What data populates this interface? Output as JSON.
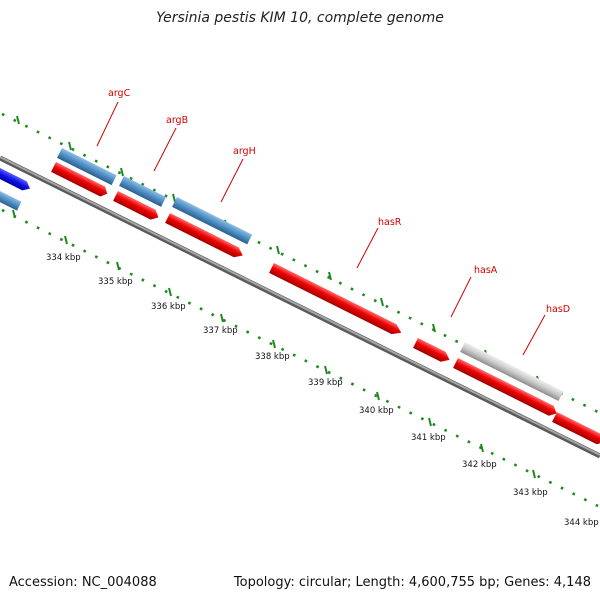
{
  "title": "Yersinia pestis KIM 10, complete genome",
  "footer": {
    "accession": "Accession: NC_004088",
    "topology": "Topology: circular; Length: 4,600,755 bp; Genes: 4,148"
  },
  "colors": {
    "backbone": "#8c8c8c",
    "forward_gene": "#ee0000",
    "blue_gene": "#4d8fc4",
    "dark_blue_gene": "#1010e8",
    "gray_gene": "#c8c8c8",
    "tick": "#1f8a1f",
    "label": "#d40000"
  },
  "scale": {
    "ticks": [
      "334 kbp",
      "335 kbp",
      "336 kbp",
      "337 kbp",
      "338 kbp",
      "339 kbp",
      "340 kbp",
      "341 kbp",
      "342 kbp",
      "343 kbp",
      "344 kbp"
    ]
  },
  "genes": {
    "labels": [
      "argC",
      "argB",
      "argH",
      "hasR",
      "hasA",
      "hasD"
    ]
  }
}
